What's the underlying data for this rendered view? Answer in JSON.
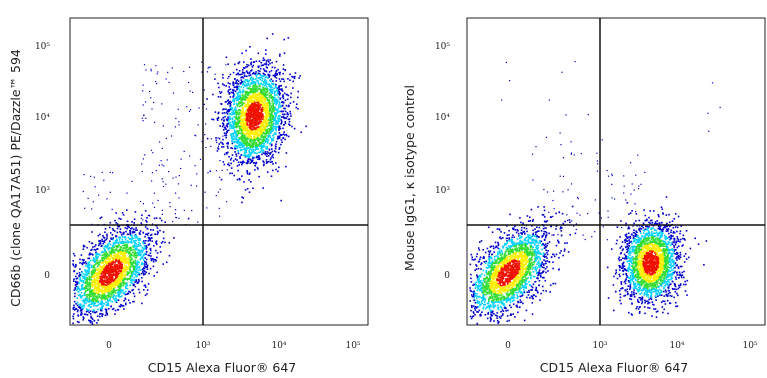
{
  "chart_data": [
    {
      "type": "scatter",
      "subtype": "flow-cytometry-density-plot",
      "title": "",
      "xlabel": "CD15 Alexa Fluor® 647",
      "ylabel": "CD66b (clone QA17A51) PE/Dazzle™ 594",
      "x_scale": "biexponential",
      "y_scale": "biexponential",
      "x_ticks": [
        "0",
        "10³",
        "10⁴",
        "10⁵"
      ],
      "y_ticks": [
        "0",
        "10³",
        "10⁴",
        "10⁵"
      ],
      "quadrant_gate": {
        "x": 1000,
        "y": 300
      },
      "populations": [
        {
          "name": "",
          "center_x": 0,
          "center_y": 0,
          "density": "high"
        },
        {
          "name": "",
          "center_x": 4500,
          "center_y": 10000,
          "density": "high"
        }
      ],
      "colors": {
        "low": "#0000cc",
        "mid": "#00d0ff",
        "mid2": "#33dd33",
        "high_mid": "#ffee00",
        "high": "#ee1100"
      }
    },
    {
      "type": "scatter",
      "subtype": "flow-cytometry-density-plot",
      "title": "",
      "xlabel": "CD15 Alexa Fluor® 647",
      "ylabel": "Mouse IgG1, κ isotype control",
      "x_scale": "biexponential",
      "y_scale": "biexponential",
      "x_ticks": [
        "0",
        "10³",
        "10⁴",
        "10⁵"
      ],
      "y_ticks": [
        "0",
        "10³",
        "10⁴",
        "10⁵"
      ],
      "quadrant_gate": {
        "x": 1000,
        "y": 300
      },
      "populations": [
        {
          "name": "",
          "center_x": 0,
          "center_y": 0,
          "density": "high"
        },
        {
          "name": "",
          "center_x": 4500,
          "center_y": 0,
          "density": "high"
        }
      ],
      "colors": {
        "low": "#0000cc",
        "mid": "#00d0ff",
        "mid2": "#33dd33",
        "high_mid": "#ffee00",
        "high": "#ee1100"
      }
    }
  ]
}
